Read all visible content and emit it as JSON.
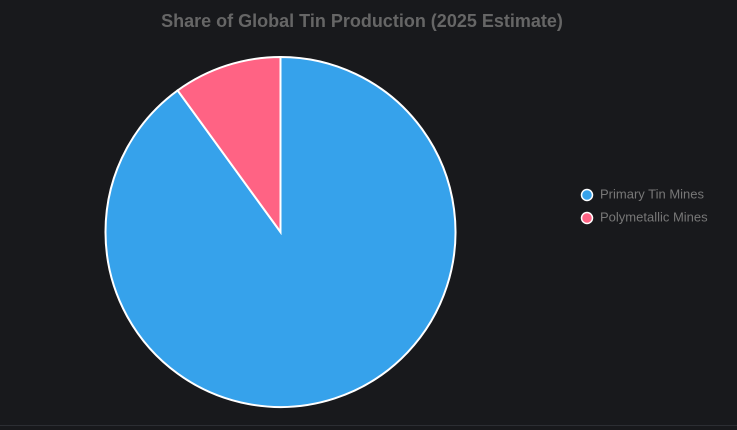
{
  "chart_data": {
    "type": "pie",
    "title": "Share of Global Tin Production (2025 Estimate)",
    "categories": [
      "Primary Tin Mines",
      "Polymetallic Mines"
    ],
    "values": [
      90,
      10
    ],
    "colors": [
      "#36a2eb",
      "#ff6384"
    ],
    "legend": "right"
  }
}
